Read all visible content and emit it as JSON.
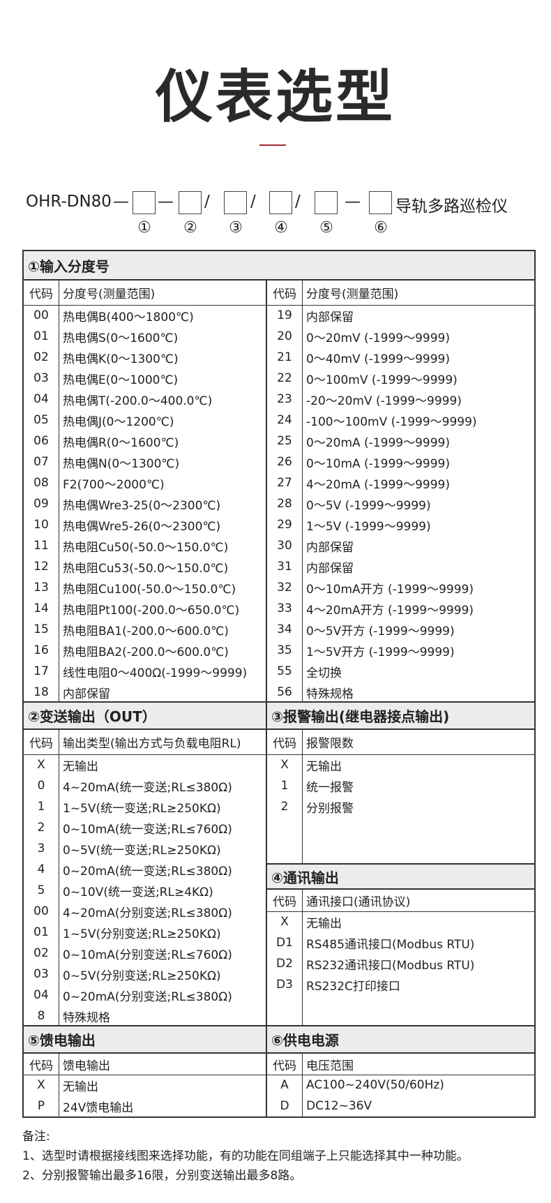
{
  "title": "仪表选型",
  "model": {
    "prefix": "OHR-DN80",
    "separators": [
      "—",
      "—",
      "/",
      "/",
      "/",
      "—"
    ],
    "suffix": "导轨多路巡检仪",
    "markers": [
      "①",
      "②",
      "③",
      "④",
      "⑤",
      "⑥"
    ]
  },
  "sections": [
    {
      "title": "①输入分度号",
      "left": {
        "headers": [
          "代码",
          "分度号(测量范围)"
        ],
        "rows": [
          [
            "00",
            "热电偶B(400～1800℃)"
          ],
          [
            "01",
            "热电偶S(0～1600℃)"
          ],
          [
            "02",
            "热电偶K(0～1300℃)"
          ],
          [
            "03",
            "热电偶E(0～1000℃)"
          ],
          [
            "04",
            "热电偶T(-200.0～400.0℃)"
          ],
          [
            "05",
            "热电偶J(0～1200℃)"
          ],
          [
            "06",
            "热电偶R(0～1600℃)"
          ],
          [
            "07",
            "热电偶N(0～1300℃)"
          ],
          [
            "08",
            "F2(700～2000℃)"
          ],
          [
            "09",
            "热电偶Wre3-25(0～2300℃)"
          ],
          [
            "10",
            "热电偶Wre5-26(0～2300℃)"
          ],
          [
            "11",
            "热电阻Cu50(-50.0～150.0℃)"
          ],
          [
            "12",
            "热电阻Cu53(-50.0～150.0℃)"
          ],
          [
            "13",
            "热电阻Cu100(-50.0～150.0℃)"
          ],
          [
            "14",
            "热电阻Pt100(-200.0～650.0℃)"
          ],
          [
            "15",
            "热电阻BA1(-200.0～600.0℃)"
          ],
          [
            "16",
            "热电阻BA2(-200.0～600.0℃)"
          ],
          [
            "17",
            "线性电阻0～400Ω(-1999～9999)"
          ],
          [
            "18",
            "内部保留"
          ]
        ]
      },
      "right": {
        "headers": [
          "代码",
          "分度号(测量范围)"
        ],
        "rows": [
          [
            "19",
            "内部保留"
          ],
          [
            "20",
            "0～20mV (-1999～9999)"
          ],
          [
            "21",
            "0～40mV (-1999～9999)"
          ],
          [
            "22",
            "0～100mV (-1999～9999)"
          ],
          [
            "23",
            "-20～20mV (-1999～9999)"
          ],
          [
            "24",
            "-100～100mV (-1999～9999)"
          ],
          [
            "25",
            "0～20mA (-1999～9999)"
          ],
          [
            "26",
            "0～10mA (-1999～9999)"
          ],
          [
            "27",
            "4～20mA (-1999～9999)"
          ],
          [
            "28",
            "0～5V (-1999～9999)"
          ],
          [
            "29",
            "1～5V (-1999～9999)"
          ],
          [
            "30",
            "内部保留"
          ],
          [
            "31",
            "内部保留"
          ],
          [
            "32",
            "0～10mA开方 (-1999～9999)"
          ],
          [
            "33",
            "4～20mA开方 (-1999～9999)"
          ],
          [
            "34",
            "0～5V开方 (-1999～9999)"
          ],
          [
            "35",
            "1～5V开方 (-1999～9999)"
          ],
          [
            "55",
            "全切换"
          ],
          [
            "56",
            "特殊规格"
          ]
        ]
      }
    },
    {
      "title": "②变送输出（OUT）",
      "headers": [
        "代码",
        "输出类型(输出方式与负载电阻RL)"
      ],
      "rows": [
        [
          "X",
          "无输出"
        ],
        [
          "0",
          "4~20mA(统一变送;RL≤380Ω)"
        ],
        [
          "1",
          "1~5V(统一变送;RL≥250KΩ)"
        ],
        [
          "2",
          "0~10mA(统一变送;RL≤760Ω)"
        ],
        [
          "3",
          "0~5V(统一变送;RL≥250KΩ)"
        ],
        [
          "4",
          "0~20mA(统一变送;RL≤380Ω)"
        ],
        [
          "5",
          "0~10V(统一变送;RL≥4KΩ)"
        ],
        [
          "00",
          "4~20mA(分别变送;RL≤380Ω)"
        ],
        [
          "01",
          "1~5V(分别变送;RL≥250KΩ)"
        ],
        [
          "02",
          "0~10mA(分别变送;RL≤760Ω)"
        ],
        [
          "03",
          "0~5V(分别变送;RL≥250KΩ)"
        ],
        [
          "04",
          "0~20mA(分别变送;RL≤380Ω)"
        ],
        [
          "8",
          "特殊规格"
        ]
      ]
    },
    {
      "title": "③报警输出(继电器接点输出)",
      "headers": [
        "代码",
        "报警限数"
      ],
      "rows": [
        [
          "X",
          "无输出"
        ],
        [
          "1",
          "统一报警"
        ],
        [
          "2",
          "分别报警"
        ]
      ]
    },
    {
      "title": "④通讯输出",
      "headers": [
        "代码",
        "通讯接口(通讯协议)"
      ],
      "rows": [
        [
          "X",
          "无输出"
        ],
        [
          "D1",
          "RS485通讯接口(Modbus RTU)"
        ],
        [
          "D2",
          "RS232通讯接口(Modbus RTU)"
        ],
        [
          "D3",
          "RS232C打印接口"
        ]
      ]
    },
    {
      "title": "⑤馈电输出",
      "headers": [
        "代码",
        "馈电输出"
      ],
      "rows": [
        [
          "X",
          "无输出"
        ],
        [
          "P",
          "24V馈电输出"
        ]
      ]
    },
    {
      "title": "⑥供电电源",
      "headers": [
        "代码",
        "电压范围"
      ],
      "rows": [
        [
          "A",
          "AC100~240V(50/60Hz)"
        ],
        [
          "D",
          "DC12~36V"
        ]
      ]
    }
  ],
  "notes": {
    "label": "备注:",
    "items": [
      "1、选型时请根据接线图来选择功能，有的功能在同组端子上只能选择其中一种功能。",
      "2、分别报警输出最多16限，分别变送输出最多8路。"
    ]
  }
}
